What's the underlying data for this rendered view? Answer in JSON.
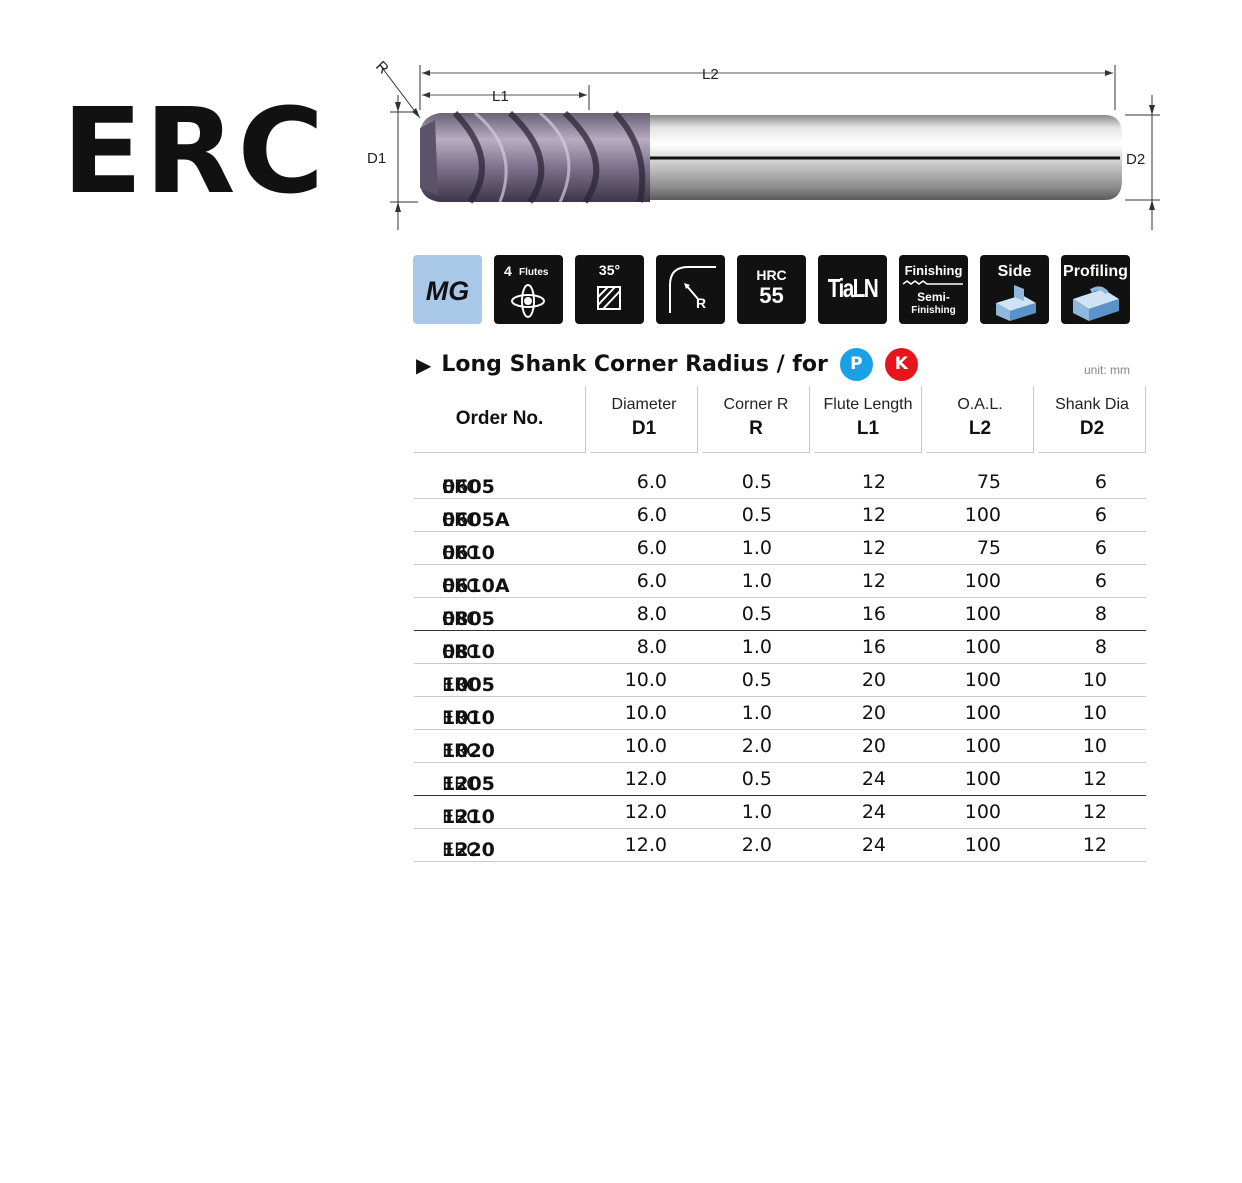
{
  "title": "ERC",
  "drawing": {
    "labels": {
      "r": "R",
      "l1": "L1",
      "l2": "L2",
      "d1": "D1",
      "d2": "D2"
    }
  },
  "icons": [
    {
      "name": "mg-grade-icon",
      "label": "MG",
      "color": "#a9c7e6"
    },
    {
      "name": "flutes-icon",
      "count": "4",
      "label": "Flutes"
    },
    {
      "name": "helix-angle-icon",
      "label": "35°"
    },
    {
      "name": "corner-radius-icon",
      "label": "R"
    },
    {
      "name": "hardness-icon",
      "label": "HRC",
      "value": "55"
    },
    {
      "name": "coating-icon",
      "label": "TiaLN"
    },
    {
      "name": "finishing-icon",
      "label": "Finishing",
      "sub1": "Semi-",
      "sub2": "Finishing"
    },
    {
      "name": "side-milling-icon",
      "label": "Side"
    },
    {
      "name": "profiling-icon",
      "label": "Profiling"
    }
  ],
  "heading": {
    "text": "Long Shank Corner Radius / for",
    "badges": [
      {
        "label": "P",
        "color": "#1aa0e6"
      },
      {
        "label": "K",
        "color": "#e8141b"
      }
    ],
    "unit": "unit: mm"
  },
  "table": {
    "headers": [
      {
        "key": "order",
        "line1": "Order No."
      },
      {
        "key": "d1",
        "line1": "Diameter",
        "line2": "D1"
      },
      {
        "key": "r",
        "line1": "Corner R",
        "line2": "R"
      },
      {
        "key": "l1",
        "line1": "Flute Length",
        "line2": "L1"
      },
      {
        "key": "l2",
        "line1": "O.A.L.",
        "line2": "L2"
      },
      {
        "key": "d2",
        "line1": "Shank Dia",
        "line2": "D2"
      }
    ],
    "prefix": "ERC",
    "rows": [
      {
        "code": "0605",
        "d1": "6.0",
        "r": "0.5",
        "l1": "12",
        "l2": "75",
        "d2": "6"
      },
      {
        "code": "0605A",
        "d1": "6.0",
        "r": "0.5",
        "l1": "12",
        "l2": "100",
        "d2": "6"
      },
      {
        "code": "0610",
        "d1": "6.0",
        "r": "1.0",
        "l1": "12",
        "l2": "75",
        "d2": "6"
      },
      {
        "code": "0610A",
        "d1": "6.0",
        "r": "1.0",
        "l1": "12",
        "l2": "100",
        "d2": "6"
      },
      {
        "code": "0805",
        "d1": "8.0",
        "r": "0.5",
        "l1": "16",
        "l2": "100",
        "d2": "8"
      },
      {
        "code": "0810",
        "d1": "8.0",
        "r": "1.0",
        "l1": "16",
        "l2": "100",
        "d2": "8"
      },
      {
        "code": "1005",
        "d1": "10.0",
        "r": "0.5",
        "l1": "20",
        "l2": "100",
        "d2": "10"
      },
      {
        "code": "1010",
        "d1": "10.0",
        "r": "1.0",
        "l1": "20",
        "l2": "100",
        "d2": "10"
      },
      {
        "code": "1020",
        "d1": "10.0",
        "r": "2.0",
        "l1": "20",
        "l2": "100",
        "d2": "10"
      },
      {
        "code": "1205",
        "d1": "12.0",
        "r": "0.5",
        "l1": "24",
        "l2": "100",
        "d2": "12"
      },
      {
        "code": "1210",
        "d1": "12.0",
        "r": "1.0",
        "l1": "24",
        "l2": "100",
        "d2": "12"
      },
      {
        "code": "1220",
        "d1": "12.0",
        "r": "2.0",
        "l1": "24",
        "l2": "100",
        "d2": "12"
      }
    ]
  }
}
